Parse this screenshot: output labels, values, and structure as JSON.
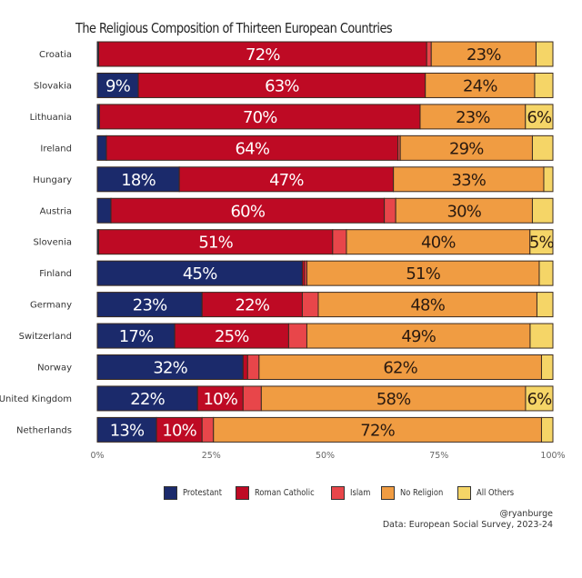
{
  "chart_data": {
    "type": "bar",
    "orientation": "horizontal-stacked",
    "title": "The Religious Composition of Thirteen European Countries",
    "xlabel": "",
    "ylabel": "",
    "xlim": [
      0,
      100
    ],
    "x_ticks": [
      "0%",
      "25%",
      "50%",
      "75%",
      "100%"
    ],
    "grid": false,
    "legend_position": "bottom",
    "categories": [
      "Croatia",
      "Slovakia",
      "Lithuania",
      "Ireland",
      "Hungary",
      "Austria",
      "Slovenia",
      "Finland",
      "Germany",
      "Switzerland",
      "Norway",
      "United Kingdom",
      "Netherlands"
    ],
    "series": [
      {
        "name": "Protestant",
        "color": "#1b2a6b",
        "label_color": "#ffffff",
        "values": [
          0.3,
          9,
          0.5,
          2,
          18,
          3,
          0.3,
          45,
          23,
          17,
          32,
          22,
          13
        ]
      },
      {
        "name": "Roman Catholic",
        "color": "#be0a24",
        "label_color": "#ffffff",
        "values": [
          72,
          63,
          70,
          64,
          47,
          60,
          51,
          0.5,
          22,
          25,
          1,
          10,
          10
        ]
      },
      {
        "name": "Islam",
        "color": "#e8464a",
        "label_color": "#ffffff",
        "values": [
          1,
          0,
          0,
          0.5,
          0,
          2.5,
          3,
          0.5,
          3.5,
          4,
          2.5,
          4,
          2.5
        ]
      },
      {
        "name": "No Religion",
        "color": "#f09c42",
        "label_color": "#2a1a10",
        "values": [
          23,
          24,
          23,
          29,
          33,
          30,
          40,
          51,
          48,
          49,
          62,
          58,
          72
        ]
      },
      {
        "name": "All Others",
        "color": "#f5d567",
        "label_color": "#2a1a10",
        "values": [
          3.7,
          4,
          6,
          4.5,
          2,
          4.5,
          5,
          3,
          3.5,
          5,
          2.5,
          6,
          2.5
        ]
      }
    ],
    "data_labels": [
      [
        "",
        "72%",
        "",
        "23%",
        ""
      ],
      [
        "9%",
        "63%",
        "",
        "24%",
        ""
      ],
      [
        "",
        "70%",
        "",
        "23%",
        "6%"
      ],
      [
        "",
        "64%",
        "",
        "29%",
        ""
      ],
      [
        "18%",
        "47%",
        "",
        "33%",
        ""
      ],
      [
        "",
        "60%",
        "",
        "30%",
        ""
      ],
      [
        "",
        "51%",
        "",
        "40%",
        "5%"
      ],
      [
        "45%",
        "",
        "",
        "51%",
        ""
      ],
      [
        "23%",
        "22%",
        "",
        "48%",
        ""
      ],
      [
        "17%",
        "25%",
        "",
        "49%",
        ""
      ],
      [
        "32%",
        "",
        "",
        "62%",
        ""
      ],
      [
        "22%",
        "10%",
        "",
        "58%",
        "6%"
      ],
      [
        "13%",
        "10%",
        "",
        "72%",
        ""
      ]
    ]
  },
  "credit": {
    "handle": "@ryanburge",
    "source": "Data: European Social Survey, 2023-24"
  }
}
